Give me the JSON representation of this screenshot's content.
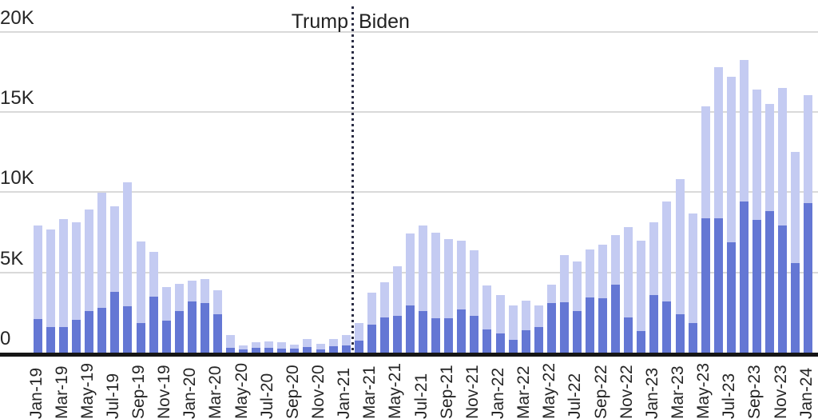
{
  "chart_data": {
    "type": "bar",
    "stacked": true,
    "title": "",
    "xlabel": "",
    "ylabel": "",
    "ylim": [
      0,
      20000
    ],
    "grid": "horizontal",
    "x_tick_every": 2,
    "yticks": [
      {
        "value": 0,
        "label": "0"
      },
      {
        "value": 5000,
        "label": "5K"
      },
      {
        "value": 10000,
        "label": "10K"
      },
      {
        "value": 15000,
        "label": "15K"
      },
      {
        "value": 20000,
        "label": "20K"
      }
    ],
    "categories": [
      "Jan-19",
      "Feb-19",
      "Mar-19",
      "Apr-19",
      "May-19",
      "Jun-19",
      "Jul-19",
      "Aug-19",
      "Sep-19",
      "Oct-19",
      "Nov-19",
      "Dec-19",
      "Jan-20",
      "Feb-20",
      "Mar-20",
      "Apr-20",
      "May-20",
      "Jun-20",
      "Jul-20",
      "Aug-20",
      "Sep-20",
      "Oct-20",
      "Nov-20",
      "Dec-20",
      "Jan-21",
      "Feb-21",
      "Mar-21",
      "Apr-21",
      "May-21",
      "Jun-21",
      "Jul-21",
      "Aug-21",
      "Sep-21",
      "Oct-21",
      "Nov-21",
      "Dec-21",
      "Jan-22",
      "Feb-22",
      "Mar-22",
      "Apr-22",
      "May-22",
      "Jun-22",
      "Jul-22",
      "Aug-22",
      "Sep-22",
      "Oct-22",
      "Nov-22",
      "Dec-22",
      "Jan-23",
      "Feb-23",
      "Mar-23",
      "Apr-23",
      "May-23",
      "Jun-23",
      "Jul-23",
      "Aug-23",
      "Sep-23",
      "Oct-23",
      "Nov-23",
      "Dec-23",
      "Jan-24"
    ],
    "series": [
      {
        "name": "dark-blue-segment",
        "color": "#6477d4",
        "values": [
          2100,
          1600,
          1600,
          2050,
          2600,
          2800,
          3800,
          2900,
          1850,
          3500,
          2000,
          2600,
          3200,
          3100,
          2400,
          300,
          220,
          300,
          300,
          260,
          270,
          330,
          180,
          400,
          460,
          760,
          1750,
          2200,
          2300,
          2950,
          2600,
          2150,
          2150,
          2700,
          2300,
          1450,
          1200,
          800,
          1400,
          1600,
          3100,
          3150,
          2600,
          3450,
          3400,
          4250,
          2200,
          1350,
          3600,
          3200,
          2400,
          1850,
          8350,
          8350,
          6900,
          9400,
          8250,
          8800,
          7900,
          5600,
          9300
        ]
      },
      {
        "name": "light-blue-segment",
        "color": "#c4cbf2",
        "values": [
          5800,
          6050,
          6700,
          6050,
          6300,
          7150,
          5300,
          7700,
          5100,
          2800,
          2100,
          1700,
          1300,
          1500,
          1500,
          800,
          230,
          330,
          380,
          380,
          230,
          500,
          380,
          430,
          640,
          1090,
          2000,
          2200,
          3100,
          4450,
          5300,
          5300,
          4950,
          4300,
          4100,
          2750,
          2400,
          2150,
          1850,
          1350,
          1150,
          2950,
          3100,
          3000,
          3350,
          3050,
          5600,
          5650,
          4500,
          6200,
          8400,
          6800,
          7000,
          9450,
          10300,
          8850,
          8150,
          6700,
          8600,
          6900,
          6750
        ]
      }
    ],
    "divider": {
      "between": [
        "Jan-21",
        "Feb-21"
      ],
      "style": "dotted",
      "color": "#2b2d45"
    },
    "annotations": [
      {
        "text": "Trump",
        "position": "left-of-divider"
      },
      {
        "text": "Biden",
        "position": "right-of-divider"
      }
    ]
  },
  "labels": {
    "trump": "Trump",
    "biden": "Biden"
  },
  "colors": {
    "dark_bar": "#6477d4",
    "light_bar": "#c4cbf2",
    "gridline": "#d9d9d9",
    "axis": "#161616",
    "divider": "#2b2d45",
    "text": "#262626"
  }
}
